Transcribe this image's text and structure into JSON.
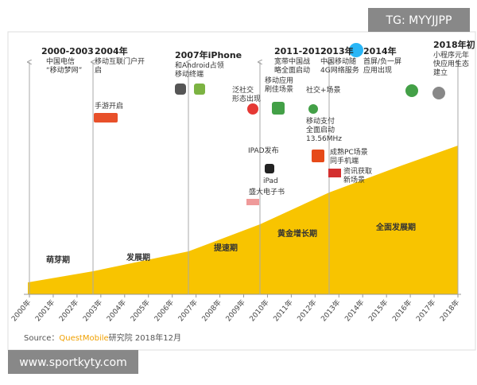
{
  "watermark_top": "TG: MYYJJPP",
  "watermark_bottom": "www.sportkyty.com",
  "milestones": [
    {
      "title": "2000-2003",
      "lines": [
        "中国电信",
        "“移动梦网”"
      ]
    },
    {
      "title": "2004年",
      "lines": [
        "移动互联门户开",
        "启"
      ]
    },
    {
      "title": "2007年iPhone",
      "lines": [
        "和Android占领",
        "移动终端"
      ]
    },
    {
      "title": "2011-2012",
      "lines": [
        "宽带中国战",
        "略全面启动"
      ]
    },
    {
      "title": "2013年",
      "lines": [
        "中国移动随",
        "4G网络服务"
      ]
    },
    {
      "title": "2014年",
      "lines": [
        "首屏/负一屏",
        "应用出现"
      ]
    },
    {
      "title": "2018年初",
      "lines": [
        "小程序元年",
        "快应用生态",
        "建立"
      ]
    }
  ],
  "events": [
    {
      "lines": [
        "手游开启"
      ]
    },
    {
      "lines": [
        "泛社交",
        "形态出现"
      ]
    },
    {
      "lines": [
        "移动应用",
        "刷佳场景"
      ]
    },
    {
      "lines": [
        "社交+场景"
      ]
    },
    {
      "lines": [
        "移动支付",
        "全面启动",
        "13.56MHz"
      ]
    },
    {
      "lines": [
        "IPAD发布"
      ]
    },
    {
      "lines": [
        "iPad"
      ]
    },
    {
      "lines": [
        "盛大电子书"
      ]
    },
    {
      "lines": [
        "成熟PC场景",
        "同手机端"
      ]
    },
    {
      "lines": [
        "资讯获取",
        "新场景"
      ]
    }
  ],
  "phases": [
    "萌芽期",
    "发展期",
    "提速期",
    "黄金增长期",
    "全面发展期"
  ],
  "years": [
    "2000年",
    "2001年",
    "2002年",
    "2003年",
    "2004年",
    "2005年",
    "2006年",
    "2007年",
    "2008年",
    "2009年",
    "2010年",
    "2011年",
    "2012年",
    "2013年",
    "2014年",
    "2015年",
    "2016年",
    "2017年",
    "2018年"
  ],
  "source": {
    "label": "Source：",
    "brand": "QuestMobile",
    "rest": "研究院 2018年12月"
  }
}
